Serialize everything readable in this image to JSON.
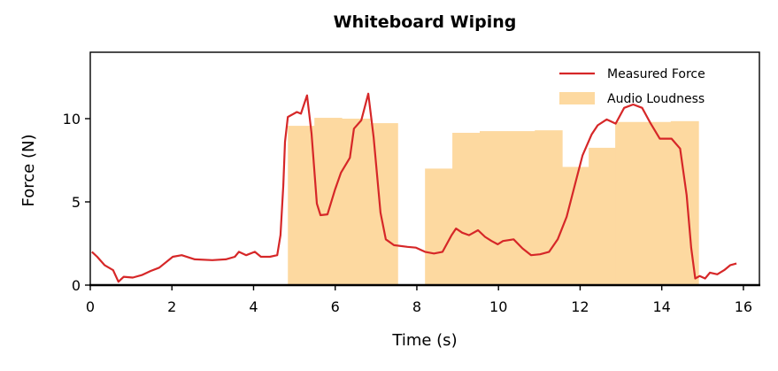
{
  "chart_data": {
    "type": "line",
    "title": "Whiteboard Wiping",
    "xlabel": "Time (s)",
    "ylabel": "Force (N)",
    "xlim": [
      0,
      16.5
    ],
    "ylim": [
      0,
      14
    ],
    "xticks": [
      0,
      2,
      4,
      6,
      8,
      10,
      12,
      14,
      16
    ],
    "yticks": [
      0,
      5,
      10
    ],
    "grid": false,
    "legend_position": "upper right",
    "legend": [
      "Measured Force",
      "Audio Loudness"
    ],
    "colors": {
      "force": "#d62728",
      "audio": "#fdd9a0",
      "axis": "#000000"
    },
    "series": [
      {
        "name": "Measured Force",
        "type": "line",
        "x": [
          0.04,
          0.17,
          0.35,
          0.56,
          0.69,
          0.82,
          1.04,
          1.26,
          1.48,
          1.69,
          2.02,
          2.24,
          2.56,
          2.99,
          3.32,
          3.54,
          3.64,
          3.82,
          4.03,
          4.18,
          4.4,
          4.58,
          4.66,
          4.73,
          4.77,
          4.84,
          5.06,
          5.16,
          5.31,
          5.42,
          5.55,
          5.64,
          5.81,
          5.99,
          6.14,
          6.36,
          6.46,
          6.64,
          6.81,
          6.94,
          7.11,
          7.24,
          7.44,
          7.77,
          7.98,
          8.2,
          8.42,
          8.63,
          8.85,
          8.96,
          9.11,
          9.28,
          9.5,
          9.67,
          9.83,
          9.98,
          10.11,
          10.37,
          10.59,
          10.8,
          11.02,
          11.24,
          11.45,
          11.67,
          11.89,
          12.06,
          12.28,
          12.43,
          12.65,
          12.87,
          13.08,
          13.3,
          13.52,
          13.73,
          13.95,
          14.24,
          14.45,
          14.61,
          14.72,
          14.82,
          14.93,
          15.06,
          15.18,
          15.36,
          15.53,
          15.68,
          15.83
        ],
        "y": [
          2.0,
          1.7,
          1.2,
          0.9,
          0.2,
          0.5,
          0.45,
          0.6,
          0.85,
          1.05,
          1.7,
          1.8,
          1.55,
          1.5,
          1.55,
          1.7,
          2.0,
          1.8,
          2.0,
          1.7,
          1.7,
          1.8,
          3.0,
          6.0,
          8.6,
          10.1,
          10.4,
          10.3,
          11.4,
          9.1,
          4.9,
          4.2,
          4.25,
          5.7,
          6.75,
          7.65,
          9.4,
          9.9,
          11.5,
          8.9,
          4.35,
          2.75,
          2.4,
          2.3,
          2.25,
          2.0,
          1.9,
          2.0,
          3.0,
          3.4,
          3.15,
          3.0,
          3.3,
          2.9,
          2.65,
          2.45,
          2.65,
          2.75,
          2.2,
          1.8,
          1.85,
          2.0,
          2.75,
          4.1,
          6.2,
          7.8,
          9.05,
          9.6,
          9.95,
          9.7,
          10.65,
          10.85,
          10.65,
          9.7,
          8.8,
          8.8,
          8.2,
          5.4,
          2.25,
          0.4,
          0.55,
          0.4,
          0.75,
          0.65,
          0.9,
          1.2,
          1.3
        ]
      },
      {
        "name": "Audio Loudness",
        "type": "bar",
        "bars": [
          {
            "x0": 4.84,
            "x1": 5.49,
            "value": 9.57
          },
          {
            "x0": 5.49,
            "x1": 6.16,
            "value": 10.05
          },
          {
            "x0": 6.16,
            "x1": 6.85,
            "value": 10.0
          },
          {
            "x0": 6.85,
            "x1": 7.53,
            "value": 9.73
          },
          {
            "x0": 8.2,
            "x1": 8.87,
            "value": 7.0
          },
          {
            "x0": 8.87,
            "x1": 9.54,
            "value": 9.15
          },
          {
            "x0": 9.54,
            "x1": 10.22,
            "value": 9.25
          },
          {
            "x0": 10.22,
            "x1": 10.89,
            "value": 9.25
          },
          {
            "x0": 10.89,
            "x1": 11.56,
            "value": 9.3
          },
          {
            "x0": 11.56,
            "x1": 12.21,
            "value": 7.1
          },
          {
            "x0": 12.21,
            "x1": 12.86,
            "value": 8.25
          },
          {
            "x0": 12.86,
            "x1": 13.55,
            "value": 9.8
          },
          {
            "x0": 13.55,
            "x1": 14.22,
            "value": 9.8
          },
          {
            "x0": 14.22,
            "x1": 14.9,
            "value": 9.85
          }
        ]
      }
    ]
  }
}
